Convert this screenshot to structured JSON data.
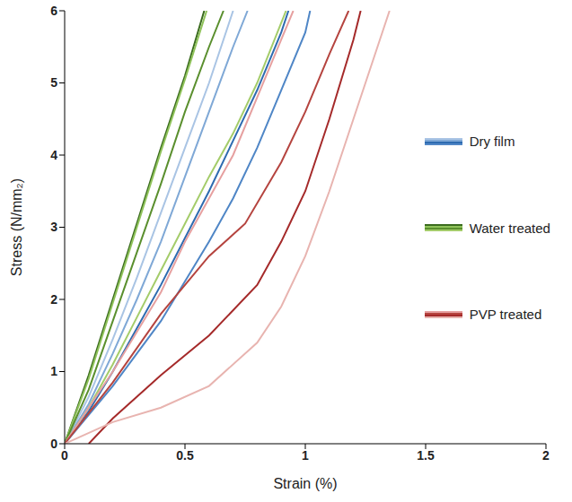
{
  "chart_data": {
    "type": "line",
    "x_label": "Strain (%)",
    "y_label": "Stress (N/mm₂)",
    "xlim": [
      0,
      2
    ],
    "ylim": [
      0,
      6
    ],
    "xticks": [
      0,
      0.5,
      1,
      1.5,
      2
    ],
    "yticks": [
      0,
      1,
      2,
      3,
      4,
      5,
      6
    ],
    "grid": false,
    "legend": "right",
    "series": [
      {
        "name": "Dry film",
        "color": "#a9c4e4",
        "x": [
          0,
          0.1,
          0.2,
          0.3,
          0.4,
          0.5,
          0.6,
          0.7
        ],
        "values": [
          0,
          0.65,
          1.45,
          2.3,
          3.2,
          4.1,
          5,
          6
        ]
      },
      {
        "name": "Dry film",
        "color": "#7fa8d6",
        "x": [
          0,
          0.1,
          0.2,
          0.3,
          0.4,
          0.5,
          0.6,
          0.7,
          0.76
        ],
        "values": [
          0,
          0.55,
          1.25,
          2,
          2.8,
          3.7,
          4.6,
          5.5,
          6
        ]
      },
      {
        "name": "Dry film",
        "color": "#2e6bb0",
        "x": [
          0,
          0.1,
          0.2,
          0.3,
          0.4,
          0.5,
          0.6,
          0.7,
          0.8,
          0.9,
          0.93
        ],
        "values": [
          0,
          0.45,
          1,
          1.6,
          2.2,
          2.85,
          3.5,
          4.2,
          4.9,
          5.7,
          6
        ]
      },
      {
        "name": "Dry film",
        "color": "#4f86c6",
        "x": [
          0,
          0.2,
          0.4,
          0.6,
          0.7,
          0.8,
          0.9,
          1.0,
          1.02
        ],
        "values": [
          0,
          0.8,
          1.7,
          2.8,
          3.4,
          4.1,
          4.9,
          5.7,
          6
        ]
      },
      {
        "name": "Water treated",
        "color": "#3a6b1e",
        "x": [
          0,
          0.1,
          0.2,
          0.3,
          0.4,
          0.5,
          0.58
        ],
        "values": [
          0,
          0.95,
          2,
          3.05,
          4.1,
          5.1,
          6
        ]
      },
      {
        "name": "Water treated",
        "color": "#8fc25a",
        "x": [
          0,
          0.1,
          0.2,
          0.3,
          0.4,
          0.5,
          0.59
        ],
        "values": [
          0,
          0.9,
          1.95,
          3,
          4.05,
          5.05,
          6
        ]
      },
      {
        "name": "Water treated",
        "color": "#5a8f2e",
        "x": [
          0,
          0.1,
          0.2,
          0.3,
          0.4,
          0.5,
          0.6,
          0.66
        ],
        "values": [
          0,
          0.75,
          1.7,
          2.65,
          3.6,
          4.6,
          5.5,
          6
        ]
      },
      {
        "name": "Water treated",
        "color": "#a4cc6a",
        "x": [
          0,
          0.1,
          0.2,
          0.3,
          0.4,
          0.5,
          0.6,
          0.7,
          0.8,
          0.92
        ],
        "values": [
          0,
          0.5,
          1.1,
          1.75,
          2.4,
          3.05,
          3.7,
          4.3,
          5,
          6
        ]
      },
      {
        "name": "PVP treated",
        "color": "#e6a0a0",
        "x": [
          0,
          0.2,
          0.4,
          0.5,
          0.6,
          0.7,
          0.8,
          0.9,
          0.95
        ],
        "values": [
          0,
          1.0,
          2.1,
          2.8,
          3.4,
          4.0,
          4.8,
          5.6,
          6
        ]
      },
      {
        "name": "PVP treated",
        "color": "#b5443f",
        "x": [
          0,
          0.2,
          0.4,
          0.6,
          0.75,
          0.9,
          1.0,
          1.1,
          1.18
        ],
        "values": [
          0,
          0.85,
          1.8,
          2.6,
          3.05,
          3.9,
          4.6,
          5.4,
          6
        ]
      },
      {
        "name": "PVP treated",
        "color": "#a52a2a",
        "x": [
          0.1,
          0.2,
          0.4,
          0.6,
          0.8,
          0.9,
          1.0,
          1.1,
          1.2,
          1.23
        ],
        "values": [
          0,
          0.35,
          0.95,
          1.5,
          2.2,
          2.8,
          3.5,
          4.5,
          5.6,
          6
        ]
      },
      {
        "name": "PVP treated",
        "color": "#e8b4b0",
        "x": [
          0,
          0.2,
          0.4,
          0.6,
          0.8,
          0.9,
          1.0,
          1.1,
          1.2,
          1.3,
          1.35
        ],
        "values": [
          0,
          0.3,
          0.5,
          0.8,
          1.4,
          1.9,
          2.6,
          3.5,
          4.5,
          5.5,
          6
        ]
      }
    ]
  }
}
